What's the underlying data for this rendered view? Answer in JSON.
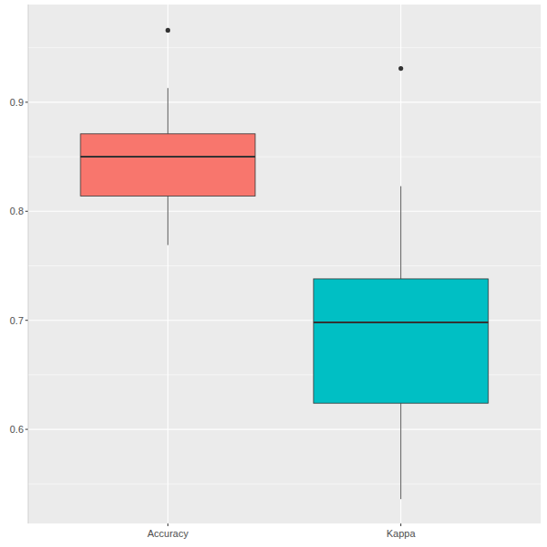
{
  "chart_data": {
    "type": "box",
    "categories": [
      "Accuracy",
      "Kappa"
    ],
    "boxes": [
      {
        "min": 0.769,
        "q1": 0.814,
        "median": 0.85,
        "q3": 0.871,
        "max": 0.913,
        "outliers": [
          0.966
        ]
      },
      {
        "min": 0.536,
        "q1": 0.624,
        "median": 0.698,
        "q3": 0.738,
        "max": 0.823,
        "outliers": [
          0.931
        ]
      }
    ],
    "colors": [
      "#F8766D",
      "#00BFC4"
    ],
    "ylim": [
      0.5137,
      0.9896
    ],
    "yticks": [
      0.6,
      0.7,
      0.8,
      0.9
    ],
    "grid": true
  }
}
